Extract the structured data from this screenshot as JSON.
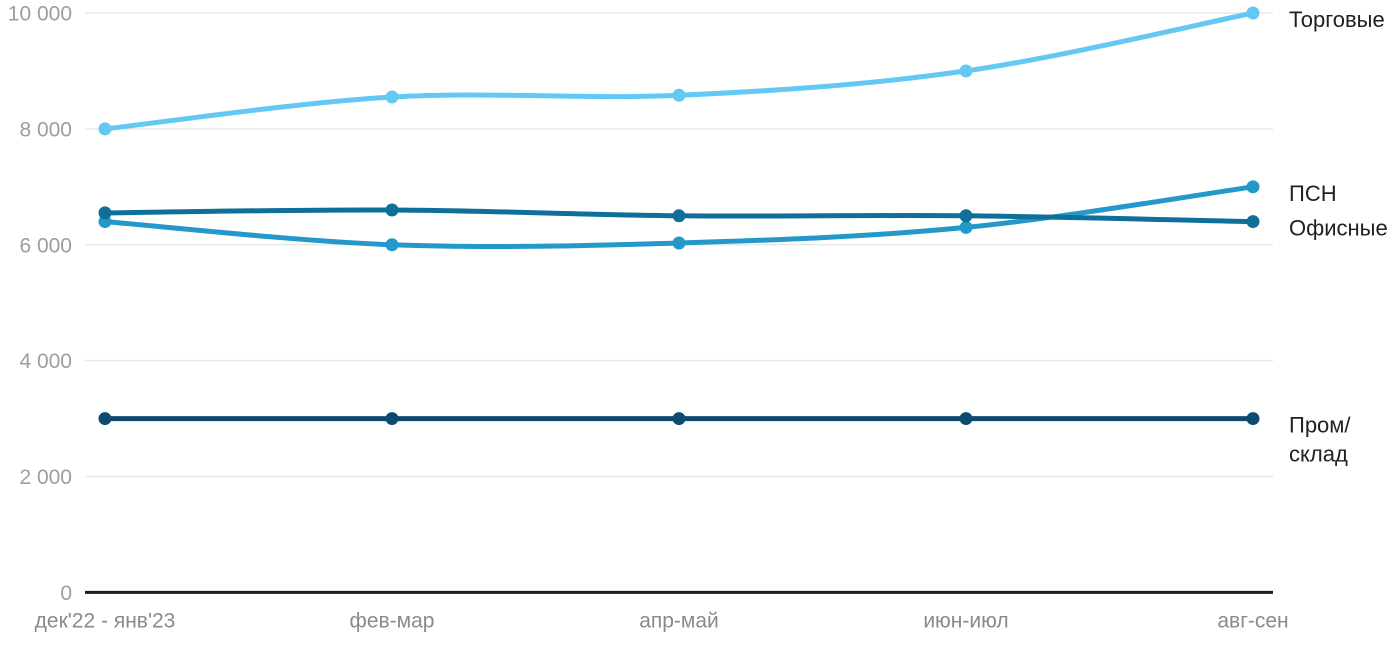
{
  "chart_data": {
    "type": "line",
    "title": "",
    "xlabel": "",
    "ylabel": "",
    "categories": [
      "дек'22 - янв'23",
      "фев-мар",
      "апр-май",
      "июн-июл",
      "авг-сен"
    ],
    "series": [
      {
        "name": "Торговые",
        "values": [
          8000,
          8550,
          8580,
          9000,
          10000
        ],
        "color": "#63C9F3",
        "label_lines": [
          "Торговые"
        ]
      },
      {
        "name": "ПСН",
        "values": [
          6400,
          6000,
          6030,
          6300,
          7000
        ],
        "color": "#2498C9",
        "label_lines": [
          "ПСН"
        ]
      },
      {
        "name": "Офисные",
        "values": [
          6550,
          6600,
          6500,
          6500,
          6400
        ],
        "color": "#0F6F99",
        "label_lines": [
          "Офисные"
        ]
      },
      {
        "name": "Пром/склад",
        "values": [
          3000,
          3000,
          3000,
          3000,
          3000
        ],
        "color": "#0E4A6F",
        "label_lines": [
          "Пром/",
          "склад"
        ]
      }
    ],
    "yticks": [
      {
        "value": 0,
        "label": "0"
      },
      {
        "value": 2000,
        "label": "2 000"
      },
      {
        "value": 4000,
        "label": "4 000"
      },
      {
        "value": 6000,
        "label": "6 000"
      },
      {
        "value": 8000,
        "label": "8 000"
      },
      {
        "value": 10000,
        "label": "10 000"
      }
    ],
    "ylim": [
      0,
      10000
    ],
    "grid": true,
    "legend_position": "right-of-line-end",
    "colors": {
      "background": "#FFFFFF",
      "gridline": "#E8E8E8",
      "axis_line": "#1C1C1C",
      "y_tick_text": "#9E9E9E",
      "x_tick_text": "#8A8A8A",
      "series_label_text": "#212121"
    }
  }
}
